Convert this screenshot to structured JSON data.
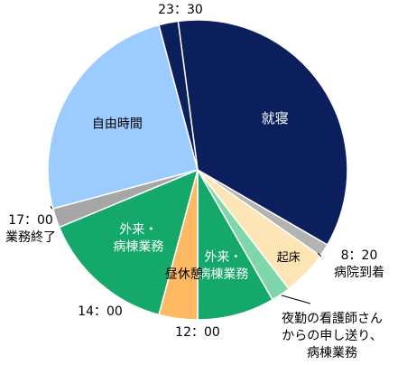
{
  "chart_data": {
    "type": "pie",
    "slices": [
      {
        "label": "就寝",
        "start": "23:30",
        "end": "8:00",
        "color": "#0a1f5c",
        "label_color": "#ffffff"
      },
      {
        "label": "",
        "start": "8:00",
        "end": "8:20",
        "color": "#b3b3b3"
      },
      {
        "label": "起床",
        "start": "8:20",
        "end": "9:30",
        "color": "#fde5b6",
        "label_color": "#000000"
      },
      {
        "label": "",
        "start": "9:30",
        "end": "10:00",
        "color": "#7fd6aa"
      },
      {
        "label": "外来・\n病棟業務",
        "start": "10:00",
        "end": "12:00",
        "color": "#14a86a",
        "label_color": "#ffffff"
      },
      {
        "label": "昼休憩",
        "start": "12:00",
        "end": "13:00",
        "color": "#ffb962",
        "label_color": "#000000"
      },
      {
        "label": "外来・\n病棟業務",
        "start": "13:00",
        "end": "16:30",
        "color": "#14a86a",
        "label_color": "#ffffff"
      },
      {
        "label": "",
        "start": "16:30",
        "end": "17:00",
        "color": "#a6a6a6"
      },
      {
        "label": "自由時間",
        "start": "17:00",
        "end": "23:00",
        "color": "#9ccbff",
        "label_color": "#000000"
      },
      {
        "label": "",
        "start": "23:00",
        "end": "23:30",
        "color": "#0a1f5c"
      }
    ],
    "annotations": [
      {
        "name": "time-2330",
        "text": "23：30",
        "at": "23:30"
      },
      {
        "name": "time-0820",
        "text": "8：20\n病院到着",
        "at": "8:20"
      },
      {
        "name": "time-1200",
        "text": "12：00",
        "at": "12:00"
      },
      {
        "name": "time-1400",
        "text": "14：00",
        "at": "14:00"
      },
      {
        "name": "time-1700",
        "text": "17：00\n業務終了",
        "at": "17:00"
      },
      {
        "name": "night-handover",
        "text": "夜勤の看護師さん\nからの申し送り、\n病棟業務",
        "at": "9:45"
      }
    ]
  }
}
